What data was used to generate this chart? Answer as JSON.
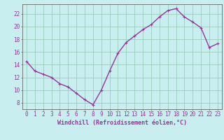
{
  "x": [
    0,
    1,
    2,
    3,
    4,
    5,
    6,
    7,
    8,
    9,
    10,
    11,
    12,
    13,
    14,
    15,
    16,
    17,
    18,
    19,
    20,
    21,
    22,
    23
  ],
  "y": [
    14.5,
    13.0,
    12.5,
    12.0,
    11.0,
    10.5,
    9.5,
    8.5,
    7.7,
    10.0,
    13.0,
    15.8,
    17.5,
    18.5,
    19.5,
    20.3,
    21.5,
    22.5,
    22.8,
    21.5,
    20.7,
    19.8,
    16.7,
    17.3
  ],
  "line_color": "#993399",
  "marker": "+",
  "marker_size": 3,
  "linewidth": 1.0,
  "xlim": [
    -0.5,
    23.5
  ],
  "ylim": [
    7,
    23.5
  ],
  "yticks": [
    8,
    10,
    12,
    14,
    16,
    18,
    20,
    22
  ],
  "xticks": [
    0,
    1,
    2,
    3,
    4,
    5,
    6,
    7,
    8,
    9,
    10,
    11,
    12,
    13,
    14,
    15,
    16,
    17,
    18,
    19,
    20,
    21,
    22,
    23
  ],
  "xlabel": "Windchill (Refroidissement éolien,°C)",
  "xlabel_fontsize": 6.0,
  "tick_fontsize": 5.5,
  "bg_color": "#c8eef0",
  "grid_color": "#99ccbb",
  "axis_color": "#993399",
  "spine_color": "#666666"
}
